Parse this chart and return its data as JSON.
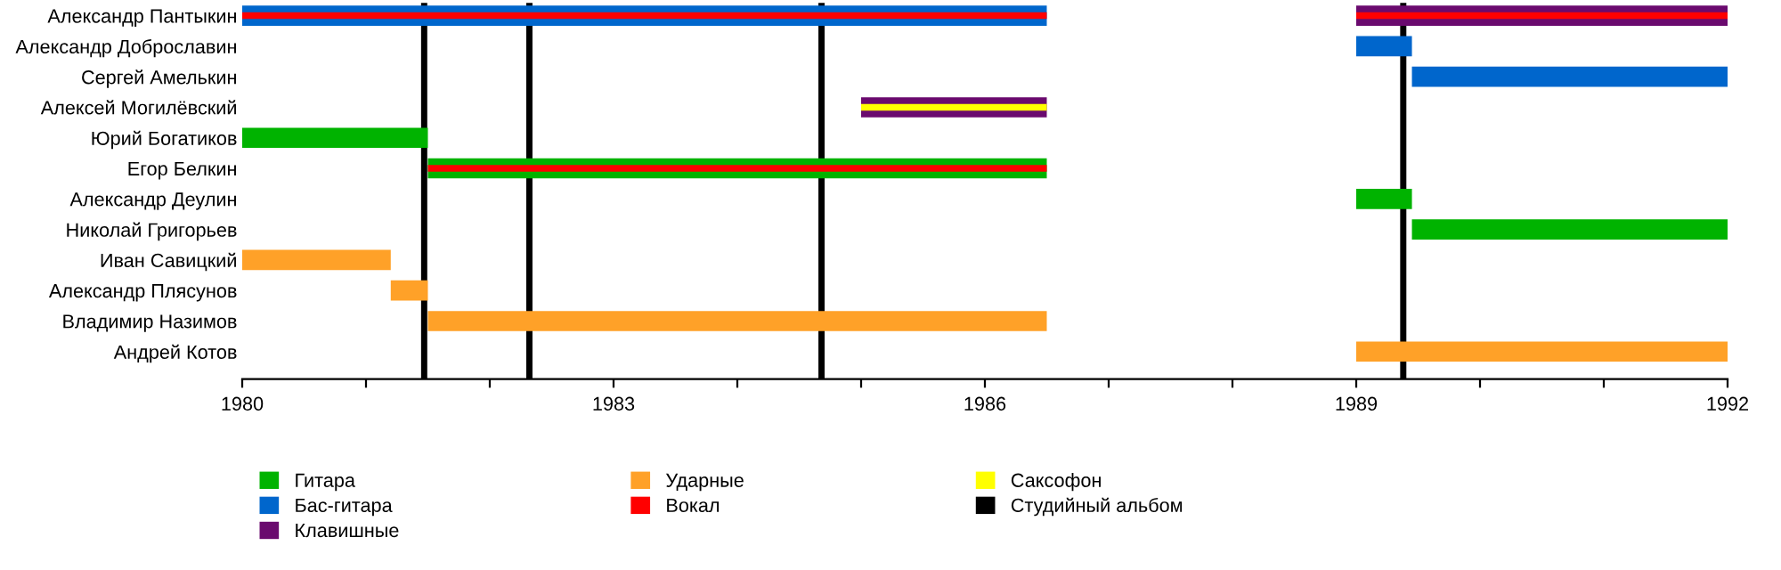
{
  "chart_data": {
    "type": "bar",
    "orientation": "horizontal",
    "categories": [
      "Александр Пантыкин",
      "Александр Доброславин",
      "Сергей Амелькин",
      "Алексей Могилёвский",
      "Юрий Богатиков",
      "Егор Белкин",
      "Александр Деулин",
      "Николай Григорьев",
      "Иван Савицкий",
      "Александр Плясунов",
      "Владимир Назимов",
      "Андрей Котов"
    ],
    "series": [
      {
        "name": "Гитара",
        "color": "#00b300",
        "base": [
          null,
          null,
          null,
          null,
          1980,
          1981.5,
          1989,
          1989.45,
          null,
          null,
          null,
          null
        ],
        "values": [
          null,
          null,
          null,
          null,
          1.5,
          5,
          0.45,
          2.55,
          null,
          null,
          null,
          null
        ]
      },
      {
        "name": "Бас-гитара",
        "color": "#0066cc",
        "base": [
          1980,
          1989,
          1989.45,
          null,
          null,
          null,
          null,
          null,
          null,
          null,
          null,
          null
        ],
        "values": [
          6.5,
          0.45,
          2.55,
          null,
          null,
          null,
          null,
          null,
          null,
          null,
          null,
          null
        ]
      },
      {
        "name": "Клавишные",
        "color": "#6a0a6e",
        "base": [
          1989,
          null,
          null,
          1985,
          null,
          null,
          null,
          null,
          null,
          null,
          null,
          null
        ],
        "values": [
          3,
          null,
          null,
          1.5,
          null,
          null,
          null,
          null,
          null,
          null,
          null,
          null
        ]
      },
      {
        "name": "Ударные",
        "color": "#ffa128",
        "base": [
          null,
          null,
          null,
          null,
          null,
          null,
          null,
          null,
          1980,
          1981.2,
          1981.5,
          1989
        ],
        "values": [
          null,
          null,
          null,
          null,
          null,
          null,
          null,
          null,
          1.2,
          0.3,
          5,
          3
        ]
      },
      {
        "name": "Вокал",
        "color": "#ff0000",
        "base": [
          1980,
          null,
          null,
          null,
          null,
          1981.5,
          null,
          null,
          null,
          null,
          null,
          null
        ],
        "values": [
          6.5,
          null,
          null,
          null,
          null,
          5,
          null,
          null,
          null,
          null,
          null,
          null
        ]
      },
      {
        "name": "Саксофон",
        "color": "#ffff00",
        "base": [
          null,
          null,
          null,
          1985,
          null,
          null,
          null,
          null,
          null,
          null,
          null,
          null
        ],
        "values": [
          null,
          null,
          null,
          1.5,
          null,
          null,
          null,
          null,
          null,
          null,
          null,
          null
        ]
      },
      {
        "color": "#ff0000",
        "base": [
          1989,
          null,
          null,
          null,
          null,
          null,
          null,
          null,
          null,
          null,
          null,
          null
        ],
        "values": [
          3,
          null,
          null,
          null,
          null,
          null,
          null,
          null,
          null,
          null,
          null,
          null
        ]
      }
    ],
    "xlim": [
      1980,
      1992
    ],
    "xticks": [
      1980,
      {
        "value": 1981,
        "label": null
      },
      {
        "value": 1982,
        "label": null
      },
      1983,
      {
        "value": 1984,
        "label": null
      },
      {
        "value": 1985,
        "label": null
      },
      1986,
      {
        "value": 1987,
        "label": null
      },
      {
        "value": 1988,
        "label": null
      },
      1989,
      {
        "value": 1990,
        "label": null
      },
      {
        "value": 1991,
        "label": null
      },
      1992
    ],
    "ref_lines": [
      {
        "axis": "x",
        "value": 1981.47,
        "label": "Студийный альбом",
        "color": "#000000"
      },
      {
        "axis": "x",
        "value": 1982.32,
        "color": "#000000"
      },
      {
        "axis": "x",
        "value": 1984.68,
        "color": "#000000"
      },
      {
        "axis": "x",
        "value": 1989.38,
        "color": "#000000"
      }
    ],
    "grid": false,
    "legend": "bottom"
  }
}
